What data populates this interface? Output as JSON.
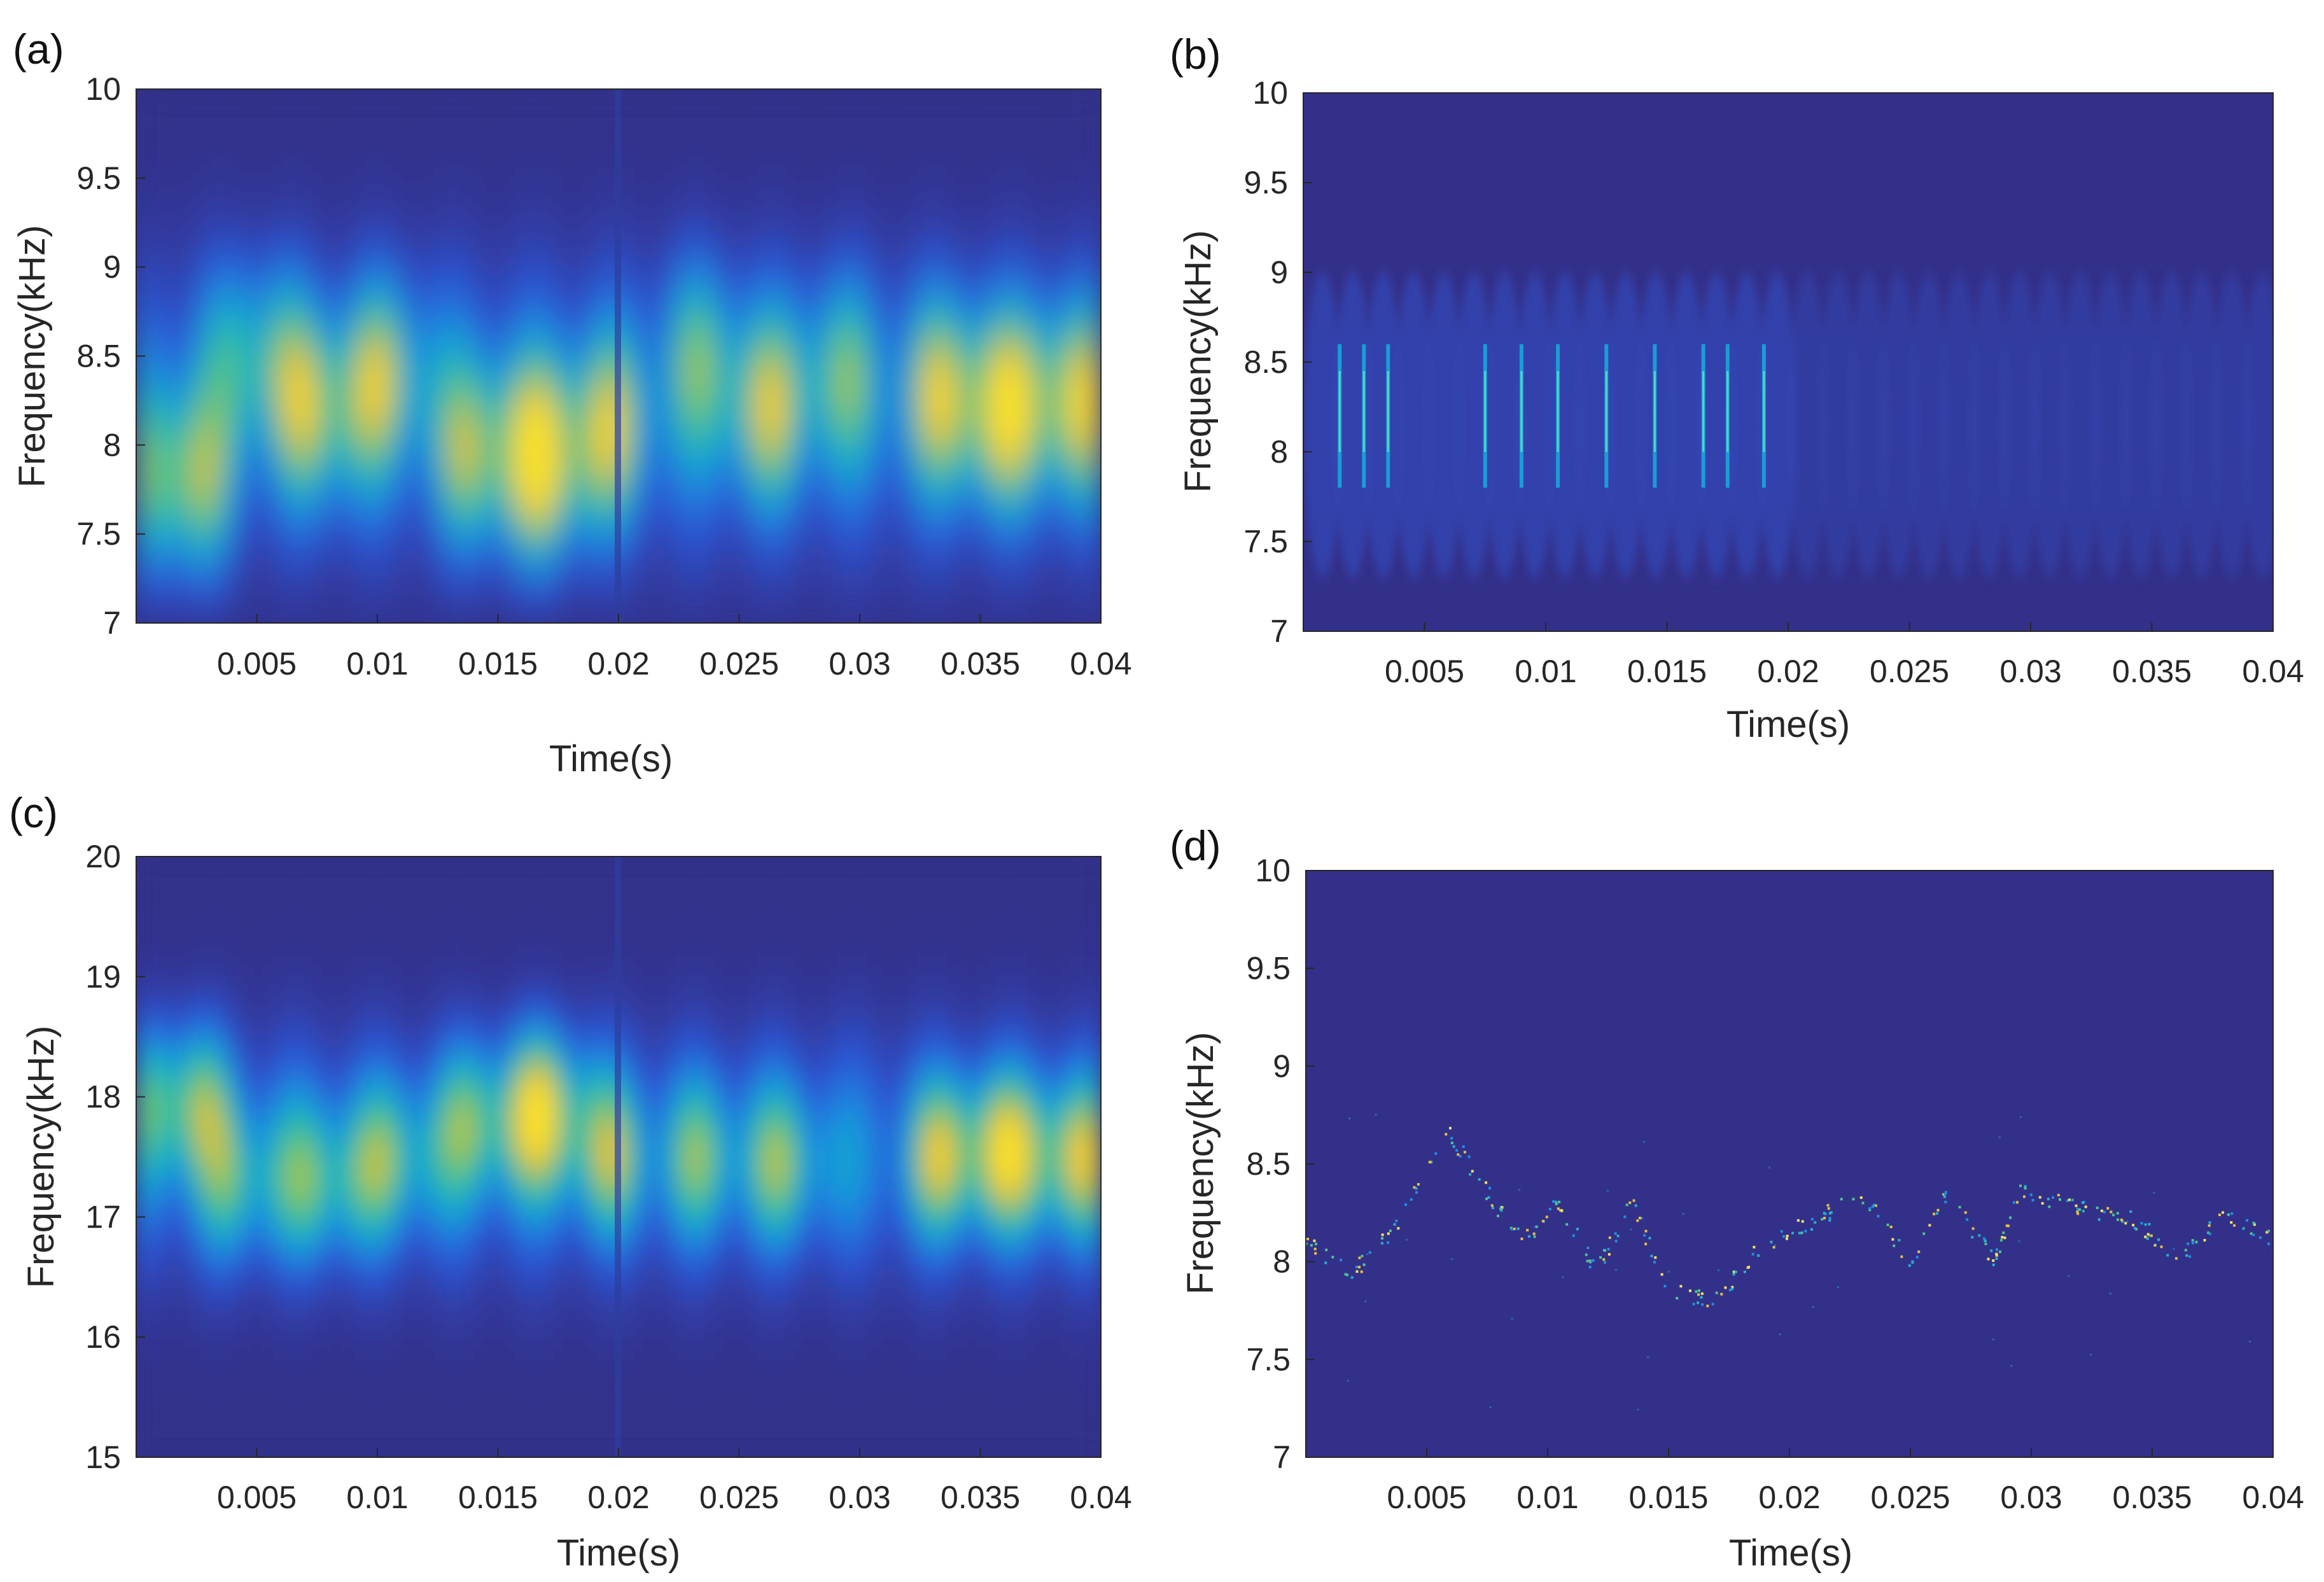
{
  "colors": {
    "background": "#33308a",
    "colormap": [
      "#33308a",
      "#2c55d6",
      "#1a8de0",
      "#17b3c4",
      "#45c08f",
      "#9cc556",
      "#f2bf33",
      "#fbe226"
    ]
  },
  "chart_data": [
    {
      "id": "a",
      "panel_label": "(a)",
      "type": "heatmap",
      "style": "smooth-spectrogram",
      "xlabel": "Time(s)",
      "ylabel": "Frequency(kHz)",
      "xlim": [
        0,
        0.04
      ],
      "ylim": [
        7,
        10
      ],
      "xticks": [
        0.005,
        0.01,
        0.015,
        0.02,
        0.025,
        0.03,
        0.035,
        0.04
      ],
      "xtick_labels": [
        "0.005",
        "0.01",
        "0.015",
        "0.02",
        "0.025",
        "0.03",
        "0.035",
        "0.04"
      ],
      "yticks": [
        7,
        7.5,
        8,
        8.5,
        9,
        9.5,
        10
      ],
      "ytick_labels": [
        "7",
        "7.5",
        "8",
        "8.5",
        "9",
        "9.5",
        "10"
      ],
      "band": {
        "center": 8.2,
        "half_width": 0.85
      },
      "blobs": [
        {
          "t": 0.0018,
          "f": 7.8,
          "a": 0.95
        },
        {
          "t": 0.005,
          "f": 8.5,
          "a": 0.6
        },
        {
          "t": 0.0078,
          "f": 8.2,
          "a": 0.78
        },
        {
          "t": 0.0105,
          "f": 8.4,
          "a": 0.6
        },
        {
          "t": 0.0145,
          "f": 7.95,
          "a": 0.82
        },
        {
          "t": 0.0172,
          "f": 7.9,
          "a": 0.98
        },
        {
          "t": 0.0195,
          "f": 8.1,
          "a": 0.6
        },
        {
          "t": 0.0235,
          "f": 8.5,
          "a": 0.45
        },
        {
          "t": 0.026,
          "f": 8.2,
          "a": 0.62
        },
        {
          "t": 0.029,
          "f": 8.4,
          "a": 0.5
        },
        {
          "t": 0.0335,
          "f": 8.3,
          "a": 0.6
        },
        {
          "t": 0.0355,
          "f": 8.2,
          "a": 0.85
        },
        {
          "t": 0.0385,
          "f": 8.25,
          "a": 0.97
        }
      ]
    },
    {
      "id": "b",
      "panel_label": "(b)",
      "type": "heatmap",
      "style": "sharp-ridges",
      "xlabel": "Time(s)",
      "ylabel": "Frequency(kHz)",
      "xlim": [
        0,
        0.04
      ],
      "ylim": [
        7,
        10
      ],
      "xticks": [
        0.005,
        0.01,
        0.015,
        0.02,
        0.025,
        0.03,
        0.035,
        0.04
      ],
      "xtick_labels": [
        "0.005",
        "0.01",
        "0.015",
        "0.02",
        "0.025",
        "0.03",
        "0.035",
        "0.04"
      ],
      "yticks": [
        7,
        7.5,
        8,
        8.5,
        9,
        9.5,
        10
      ],
      "ytick_labels": [
        "7",
        "7.5",
        "8",
        "8.5",
        "9",
        "9.5",
        "10"
      ],
      "band": {
        "center": 8.15,
        "half_width": 0.85
      },
      "ridges": [
        0.0015,
        0.0025,
        0.0035,
        0.0075,
        0.009,
        0.0105,
        0.0125,
        0.0145,
        0.0165,
        0.0175,
        0.019
      ]
    },
    {
      "id": "c",
      "panel_label": "(c)",
      "type": "heatmap",
      "style": "smooth-spectrogram",
      "xlabel": "Time(s)",
      "ylabel": "Frequency(kHz)",
      "xlim": [
        0,
        0.04
      ],
      "ylim": [
        15,
        20
      ],
      "xticks": [
        0.005,
        0.01,
        0.015,
        0.02,
        0.025,
        0.03,
        0.035,
        0.04
      ],
      "xtick_labels": [
        "0.005",
        "0.01",
        "0.015",
        "0.02",
        "0.025",
        "0.03",
        "0.035",
        "0.04"
      ],
      "yticks": [
        15,
        16,
        17,
        18,
        19,
        20
      ],
      "ytick_labels": [
        "15",
        "16",
        "17",
        "18",
        "19",
        "20"
      ],
      "band": {
        "center": 17.5,
        "half_width": 1.05
      },
      "blobs": [
        {
          "t": 0.0018,
          "f": 17.95,
          "a": 0.85
        },
        {
          "t": 0.0045,
          "f": 17.3,
          "a": 0.5
        },
        {
          "t": 0.008,
          "f": 17.3,
          "a": 0.6
        },
        {
          "t": 0.011,
          "f": 17.5,
          "a": 0.5
        },
        {
          "t": 0.0145,
          "f": 17.8,
          "a": 0.65
        },
        {
          "t": 0.0172,
          "f": 17.9,
          "a": 0.85
        },
        {
          "t": 0.0195,
          "f": 17.5,
          "a": 0.5
        },
        {
          "t": 0.0235,
          "f": 17.5,
          "a": 0.45
        },
        {
          "t": 0.027,
          "f": 17.45,
          "a": 0.5
        },
        {
          "t": 0.0335,
          "f": 17.5,
          "a": 0.55
        },
        {
          "t": 0.0355,
          "f": 17.55,
          "a": 0.75
        },
        {
          "t": 0.0385,
          "f": 17.5,
          "a": 0.85
        }
      ]
    },
    {
      "id": "d",
      "panel_label": "(d)",
      "type": "scatter",
      "style": "sparse-ridge-points",
      "xlabel": "Time(s)",
      "ylabel": "Frequency(kHz)",
      "xlim": [
        0,
        0.04
      ],
      "ylim": [
        7,
        10
      ],
      "xticks": [
        0.005,
        0.01,
        0.015,
        0.02,
        0.025,
        0.03,
        0.035,
        0.04
      ],
      "xtick_labels": [
        "0.005",
        "0.01",
        "0.015",
        "0.02",
        "0.025",
        "0.03",
        "0.035",
        "0.04"
      ],
      "yticks": [
        7,
        7.5,
        8,
        8.5,
        9,
        9.5,
        10
      ],
      "ytick_labels": [
        "7",
        "7.5",
        "8",
        "8.5",
        "9",
        "9.5",
        "10"
      ],
      "ridge_path": [
        [
          0,
          8.1
        ],
        [
          0.002,
          7.95
        ],
        [
          0.0035,
          8.15
        ],
        [
          0.006,
          8.65
        ],
        [
          0.0075,
          8.35
        ],
        [
          0.009,
          8.1
        ],
        [
          0.0105,
          8.3
        ],
        [
          0.012,
          7.95
        ],
        [
          0.0135,
          8.3
        ],
        [
          0.015,
          7.85
        ],
        [
          0.017,
          7.8
        ],
        [
          0.019,
          8.1
        ],
        [
          0.021,
          8.2
        ],
        [
          0.023,
          8.35
        ],
        [
          0.025,
          8.0
        ],
        [
          0.0265,
          8.35
        ],
        [
          0.0285,
          8.0
        ],
        [
          0.0295,
          8.35
        ],
        [
          0.0315,
          8.3
        ],
        [
          0.033,
          8.25
        ],
        [
          0.0345,
          8.2
        ],
        [
          0.036,
          8.0
        ],
        [
          0.038,
          8.25
        ],
        [
          0.04,
          8.1
        ]
      ]
    }
  ]
}
